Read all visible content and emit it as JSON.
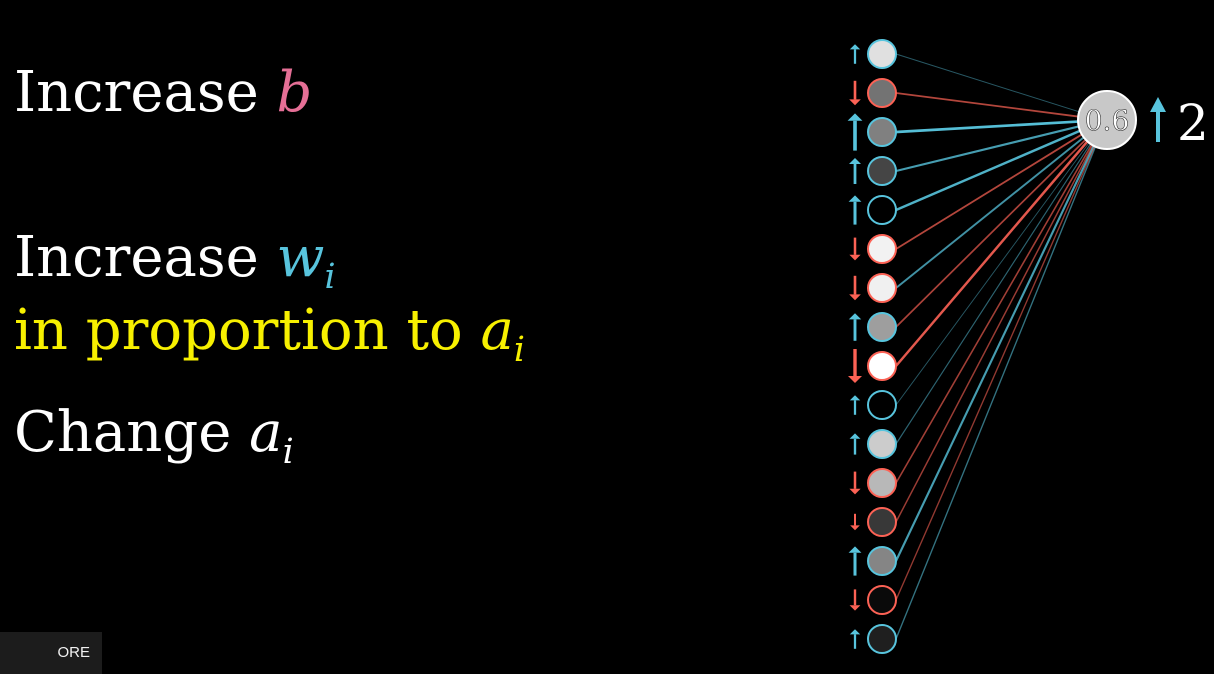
{
  "lines": {
    "increase_word": "Increase",
    "b": "b",
    "w": "w",
    "i": "i",
    "proportion": "in proportion to",
    "a": "a",
    "change_word": "Change"
  },
  "overlay": {
    "more_videos": "ORE VIDEOS"
  },
  "output_neuron": {
    "activation": "0.6",
    "desired_change": "2",
    "arrow": "up"
  },
  "colors": {
    "positive": "#58c4dd",
    "negative": "#fc6255",
    "bias": "#e56f96",
    "highlight": "#f7f000"
  },
  "neurons": [
    {
      "brightness": 0.88,
      "sign": "+",
      "mag": 0.3
    },
    {
      "brightness": 0.45,
      "sign": "-",
      "mag": 0.45
    },
    {
      "brightness": 0.5,
      "sign": "+",
      "mag": 0.85
    },
    {
      "brightness": 0.27,
      "sign": "+",
      "mag": 0.5
    },
    {
      "brightness": 0.0,
      "sign": "+",
      "mag": 0.6
    },
    {
      "brightness": 0.95,
      "sign": "-",
      "mag": 0.4
    },
    {
      "brightness": 0.94,
      "sign": "-",
      "mag": 0.45
    },
    {
      "brightness": 0.62,
      "sign": "+",
      "mag": 0.55
    },
    {
      "brightness": 1.0,
      "sign": "-",
      "mag": 0.75
    },
    {
      "brightness": 0.0,
      "sign": "+",
      "mag": 0.3
    },
    {
      "brightness": 0.8,
      "sign": "+",
      "mag": 0.35
    },
    {
      "brightness": 0.72,
      "sign": "-",
      "mag": 0.4
    },
    {
      "brightness": 0.22,
      "sign": "-",
      "mag": 0.2
    },
    {
      "brightness": 0.52,
      "sign": "+",
      "mag": 0.6
    },
    {
      "brightness": 0.04,
      "sign": "-",
      "mag": 0.35
    },
    {
      "brightness": 0.12,
      "sign": "+",
      "mag": 0.3
    }
  ],
  "weights": [
    {
      "sign": "+",
      "strength": 0.15
    },
    {
      "sign": "-",
      "strength": 0.55
    },
    {
      "sign": "+",
      "strength": 0.95
    },
    {
      "sign": "+",
      "strength": 0.7
    },
    {
      "sign": "+",
      "strength": 0.85
    },
    {
      "sign": "-",
      "strength": 0.55
    },
    {
      "sign": "+",
      "strength": 0.6
    },
    {
      "sign": "-",
      "strength": 0.5
    },
    {
      "sign": "-",
      "strength": 0.85
    },
    {
      "sign": "+",
      "strength": 0.15
    },
    {
      "sign": "+",
      "strength": 0.25
    },
    {
      "sign": "-",
      "strength": 0.45
    },
    {
      "sign": "-",
      "strength": 0.4
    },
    {
      "sign": "+",
      "strength": 0.7
    },
    {
      "sign": "-",
      "strength": 0.35
    },
    {
      "sign": "+",
      "strength": 0.35
    }
  ]
}
